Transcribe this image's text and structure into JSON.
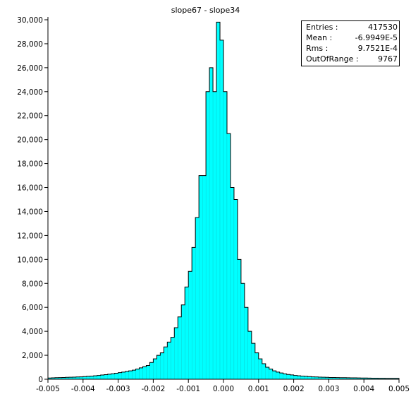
{
  "chart_data": {
    "type": "bar",
    "title": "slope67 - slope34",
    "xlabel": "",
    "ylabel": "",
    "xlim": [
      -0.005,
      0.005
    ],
    "ylim": [
      0,
      30000
    ],
    "bin_width": 0.0001,
    "bar_color": "#00FFFF",
    "edge_color": "#000000",
    "grid": false,
    "legend": "none",
    "xticks": [
      "-0.005",
      "-0.004",
      "-0.003",
      "-0.002",
      "-0.001",
      "0.000",
      "0.001",
      "0.002",
      "0.003",
      "0.004",
      "0.005"
    ],
    "yticks": [
      "0",
      "2,000",
      "4,000",
      "6,000",
      "8,000",
      "10,000",
      "12,000",
      "14,000",
      "16,000",
      "18,000",
      "20,000",
      "22,000",
      "24,000",
      "26,000",
      "28,000",
      "30,000"
    ],
    "x": [
      -0.00495,
      -0.00485,
      -0.00475,
      -0.00465,
      -0.00455,
      -0.00445,
      -0.00435,
      -0.00425,
      -0.00415,
      -0.00405,
      -0.00395,
      -0.00385,
      -0.00375,
      -0.00365,
      -0.00355,
      -0.00345,
      -0.00335,
      -0.00325,
      -0.00315,
      -0.00305,
      -0.00295,
      -0.00285,
      -0.00275,
      -0.00265,
      -0.00255,
      -0.00245,
      -0.00235,
      -0.00225,
      -0.00215,
      -0.00205,
      -0.00195,
      -0.00185,
      -0.00175,
      -0.00165,
      -0.00155,
      -0.00145,
      -0.00135,
      -0.00125,
      -0.00115,
      -0.00105,
      -0.00095,
      -0.00085,
      -0.00075,
      -0.00065,
      -0.00055,
      -0.00045,
      -0.00035,
      -0.00025,
      -0.00015,
      -5e-05,
      5e-05,
      0.00015,
      0.00025,
      0.00035,
      0.00045,
      0.00055,
      0.00065,
      0.00075,
      0.00085,
      0.00095,
      0.00105,
      0.00115,
      0.00125,
      0.00135,
      0.00145,
      0.00155,
      0.00165,
      0.00175,
      0.00185,
      0.00195,
      0.00205,
      0.00215,
      0.00225,
      0.00235,
      0.00245,
      0.00255,
      0.00265,
      0.00275,
      0.00285,
      0.00295,
      0.00305,
      0.00315,
      0.00325,
      0.00335,
      0.00345,
      0.00355,
      0.00365,
      0.00375,
      0.00385,
      0.00395,
      0.00405,
      0.00415,
      0.00425,
      0.00435,
      0.00445,
      0.00455,
      0.00465,
      0.00475,
      0.00485,
      0.00495
    ],
    "values": [
      100,
      120,
      130,
      140,
      150,
      160,
      170,
      180,
      190,
      200,
      220,
      240,
      260,
      290,
      320,
      350,
      380,
      420,
      460,
      500,
      550,
      600,
      650,
      700,
      760,
      850,
      950,
      1050,
      1150,
      1400,
      1700,
      2000,
      2200,
      2700,
      3100,
      3500,
      4300,
      5200,
      6200,
      7700,
      9000,
      11000,
      13500,
      17000,
      17000,
      24000,
      26000,
      24000,
      29800,
      28300,
      24000,
      20500,
      16000,
      15000,
      10000,
      8000,
      6000,
      4000,
      3000,
      2200,
      1700,
      1300,
      1000,
      850,
      700,
      600,
      520,
      450,
      400,
      360,
      320,
      290,
      260,
      240,
      220,
      200,
      190,
      180,
      170,
      160,
      150,
      145,
      140,
      135,
      130,
      125,
      120,
      115,
      110,
      105,
      100,
      95,
      90,
      85,
      80,
      80,
      75,
      75,
      70,
      70
    ]
  },
  "stats": {
    "rows": [
      {
        "label": "Entries :",
        "value": "417530"
      },
      {
        "label": "Mean :",
        "value": "-6.9949E-5"
      },
      {
        "label": "Rms :",
        "value": "9.7521E-4"
      },
      {
        "label": "OutOfRange :",
        "value": "9767"
      }
    ]
  }
}
